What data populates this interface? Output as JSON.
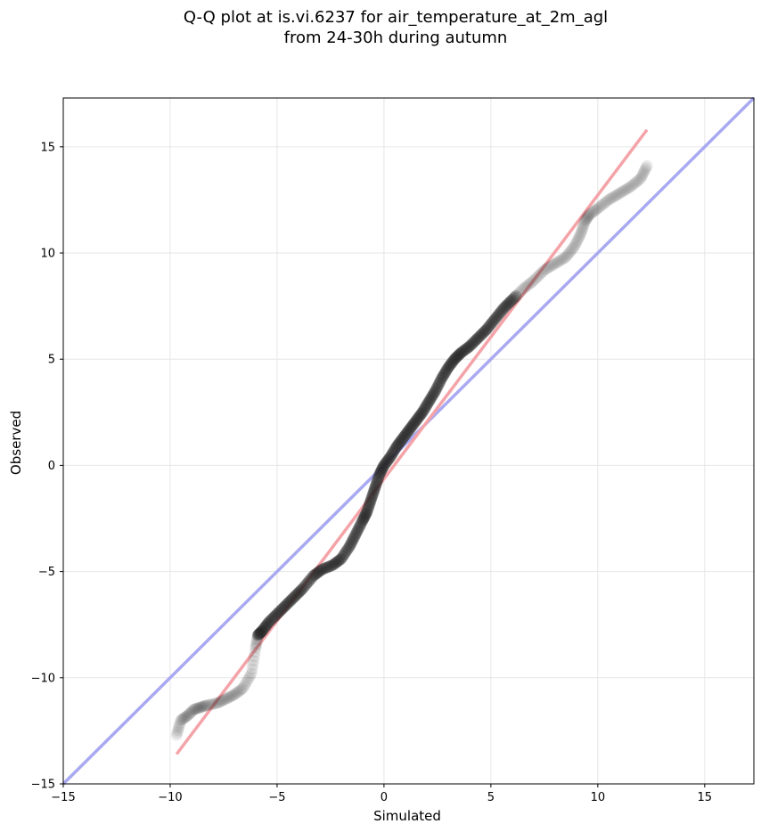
{
  "chart_data": {
    "type": "scatter",
    "title": [
      "Q-Q plot at is.vi.6237 for air_temperature_at_2m_agl",
      "from 24-30h during autumn"
    ],
    "xlabel": "Simulated",
    "ylabel": "Observed",
    "xlim": [
      -15,
      17.3
    ],
    "ylim": [
      -15,
      17.3
    ],
    "xticks": [
      -15,
      -10,
      -5,
      0,
      5,
      10,
      15
    ],
    "yticks": [
      -15,
      -10,
      -5,
      0,
      5,
      10,
      15
    ],
    "xtick_labels": [
      "−15",
      "−10",
      "−5",
      "0",
      "5",
      "10",
      "15"
    ],
    "ytick_labels": [
      "−15",
      "−10",
      "−5",
      "0",
      "5",
      "10",
      "15"
    ],
    "grid": true,
    "colors": {
      "points": "#222222",
      "fit_line": "#f4a3a8",
      "identity_line": "#a9a9f2"
    },
    "lines": [
      {
        "kind": "identity",
        "x": [
          -15,
          17.3
        ],
        "y": [
          -15,
          17.3
        ]
      },
      {
        "kind": "fit",
        "x": [
          -9.7,
          12.3
        ],
        "y": [
          -13.6,
          15.8
        ]
      }
    ],
    "series": [
      {
        "x": [
          -9.7,
          -9.5,
          -9.2,
          -8.9,
          -8.6,
          -8.3,
          -7.8,
          -7.4,
          -7.0,
          -6.6,
          -6.2,
          -6.0,
          -5.9,
          -5.7,
          -5.4,
          -5.0,
          -4.6,
          -4.2,
          -3.8,
          -3.3,
          -2.9,
          -2.4,
          -2.0,
          -1.6,
          -1.3,
          -1.0,
          -0.8,
          -0.6,
          -0.4,
          -0.2,
          0.0,
          0.3,
          0.6,
          0.9,
          1.2,
          1.5,
          1.8,
          2.1,
          2.4,
          2.7,
          3.0,
          3.3,
          3.6,
          4.0,
          4.4,
          4.8,
          5.2,
          5.6,
          6.0,
          6.5,
          7.0,
          7.5,
          8.0,
          8.5,
          8.9,
          9.2,
          9.4,
          9.6,
          10.0,
          10.5,
          11.0,
          11.5,
          12.0,
          12.3
        ],
        "y": [
          -12.7,
          -12.0,
          -11.8,
          -11.5,
          -11.4,
          -11.3,
          -11.2,
          -11.0,
          -10.8,
          -10.5,
          -9.8,
          -8.6,
          -8.0,
          -7.8,
          -7.4,
          -7.0,
          -6.6,
          -6.2,
          -5.8,
          -5.2,
          -4.9,
          -4.7,
          -4.4,
          -3.8,
          -3.2,
          -2.6,
          -2.2,
          -1.6,
          -1.0,
          -0.4,
          0.0,
          0.4,
          0.9,
          1.3,
          1.7,
          2.1,
          2.5,
          3.0,
          3.5,
          4.1,
          4.6,
          5.0,
          5.3,
          5.6,
          6.0,
          6.4,
          6.9,
          7.4,
          7.8,
          8.3,
          8.7,
          9.2,
          9.5,
          9.8,
          10.3,
          10.9,
          11.5,
          11.8,
          12.1,
          12.5,
          12.8,
          13.1,
          13.5,
          14.1
        ]
      }
    ]
  }
}
